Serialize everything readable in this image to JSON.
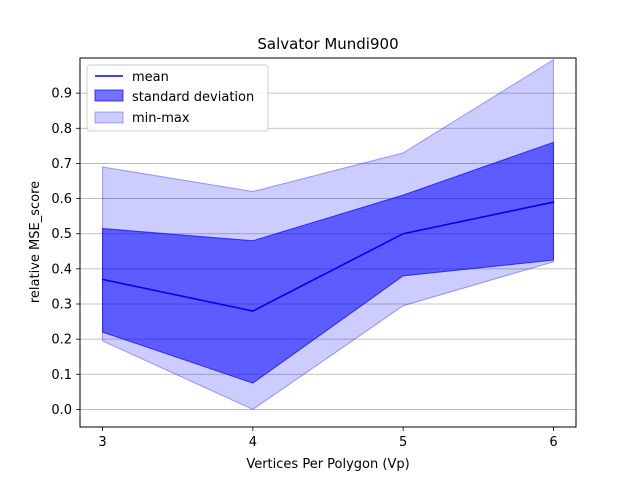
{
  "chart_data": {
    "type": "line",
    "title": "Salvator Mundi900",
    "xlabel": "Vertices Per Polygon (Vp)",
    "ylabel": "relative MSE_score",
    "x": [
      3,
      4,
      5,
      6
    ],
    "xlim": [
      2.85,
      6.15
    ],
    "ylim": [
      -0.05,
      1.0
    ],
    "xticks": [
      "3",
      "4",
      "5",
      "6"
    ],
    "yticks": [
      "0.0",
      "0.1",
      "0.2",
      "0.3",
      "0.4",
      "0.5",
      "0.6",
      "0.7",
      "0.8",
      "0.9"
    ],
    "grid": "horizontal",
    "legend_position": "top-left",
    "series": [
      {
        "name": "mean",
        "kind": "line",
        "values": [
          0.37,
          0.28,
          0.5,
          0.59
        ],
        "color": "#0000ff"
      },
      {
        "name": "standard deviation",
        "kind": "band",
        "lower": [
          0.22,
          0.075,
          0.38,
          0.425
        ],
        "upper": [
          0.515,
          0.48,
          0.61,
          0.76
        ],
        "color": "#0000ff",
        "opacity": 0.55
      },
      {
        "name": "min-max",
        "kind": "band",
        "lower": [
          0.195,
          0.0,
          0.295,
          0.42
        ],
        "upper": [
          0.69,
          0.62,
          0.73,
          0.995
        ],
        "color": "#0000ff",
        "opacity": 0.2
      }
    ]
  }
}
